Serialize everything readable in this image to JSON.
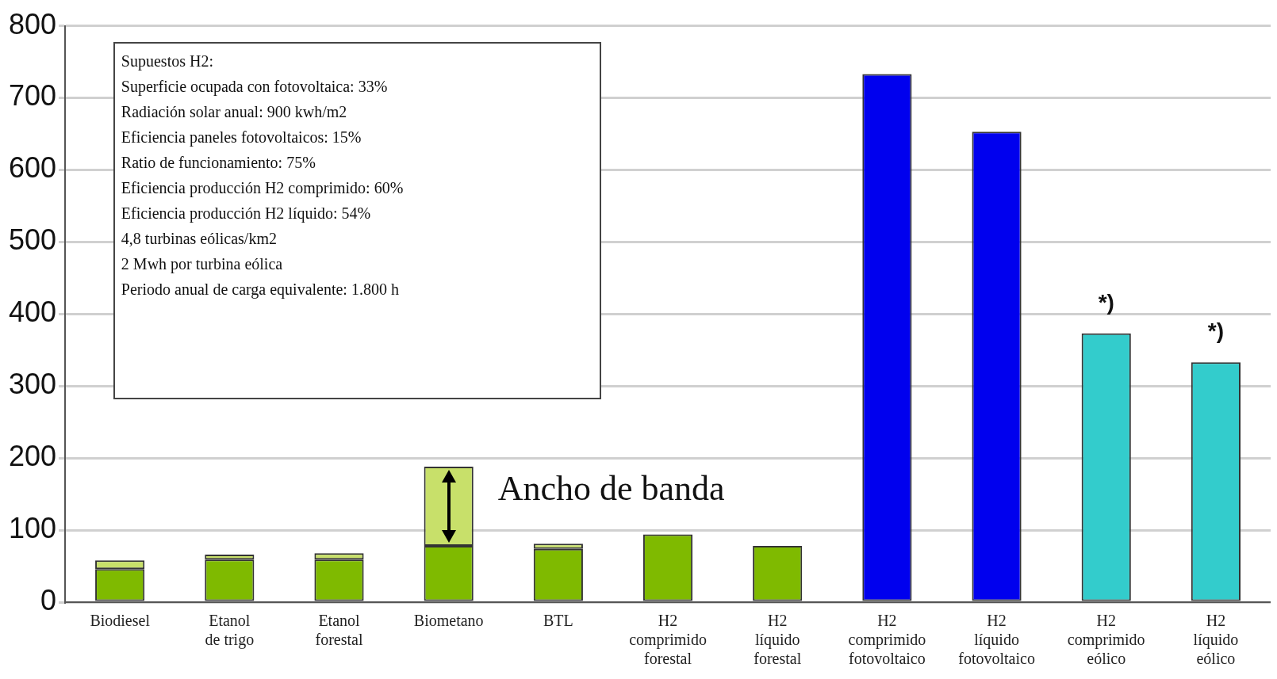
{
  "chart_data": {
    "type": "bar",
    "stacked": true,
    "categories": [
      "Biodiesel",
      "Etanol de trigo",
      "Etanol forestal",
      "Biometano",
      "BTL",
      "H2 comprimido forestal",
      "H2 líquido forestal",
      "H2 comprimido fotovoltaico",
      "H2 líquido fotovoltaico",
      "H2 comprimido eólico",
      "H2 líquido eólico"
    ],
    "series": [
      {
        "colors": [
          "#7fba00",
          "#7fba00",
          "#7fba00",
          "#7fba00",
          "#7fba00",
          "#7fba00",
          "#7fba00",
          "#0000ee",
          "#0000ee",
          "#33cccc",
          "#33cccc"
        ],
        "values": [
          46,
          59,
          59,
          78,
          74,
          94,
          78,
          733,
          653,
          373,
          333
        ]
      },
      {
        "color": "#c8e06a",
        "values": [
          12,
          7,
          9,
          110,
          7,
          null,
          null,
          null,
          null,
          null,
          null
        ]
      }
    ],
    "ylim": [
      0,
      800
    ],
    "yticks": [
      0,
      100,
      200,
      300,
      400,
      500,
      600,
      700,
      800
    ],
    "grid": "y",
    "annotations": [
      "Supuestos H2:",
      "Superficie ocupada con fotovoltaica: 33%",
      "Radiación solar anual: 900 kwh/m2",
      "Eficiencia paneles fotovoltaicos: 15%",
      "Ratio de funcionamiento: 75%",
      "Eficiencia producción H2 comprimido: 60%",
      "Eficiencia producción H2 líquido: 54%",
      "4,8 turbinas eólicas/km2",
      "2 Mwh por turbina eólica",
      "Periodo anual de carga equivalente: 1.800 h",
      {
        "text": "Ancho de banda",
        "x": "Biometano",
        "y": 188
      },
      {
        "text": "*)",
        "x": "H2 comprimido eólico",
        "y": 373
      },
      {
        "text": "*)",
        "x": "H2 líquido eólico",
        "y": 333
      }
    ]
  }
}
